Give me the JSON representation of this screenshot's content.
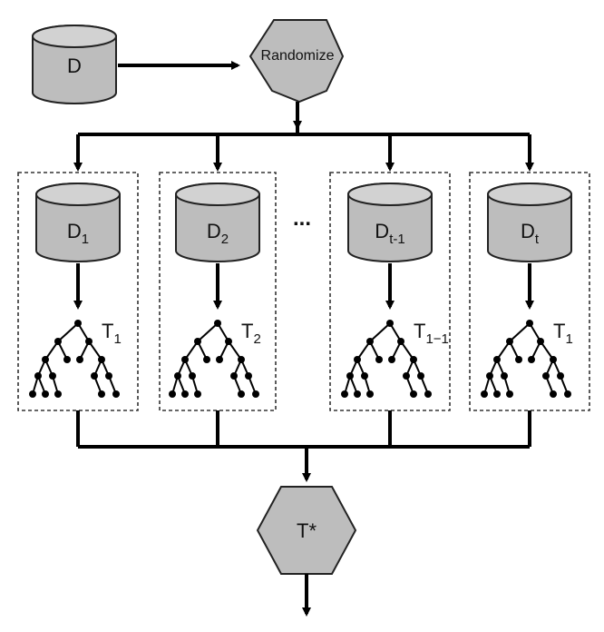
{
  "input_dataset": "D",
  "randomize_step": "Randomize",
  "ellipsis": "...",
  "partitions": [
    {
      "dataset": "D",
      "dataset_sub": "1",
      "tree": "T",
      "tree_sub": "1"
    },
    {
      "dataset": "D",
      "dataset_sub": "2",
      "tree": "T",
      "tree_sub": "2"
    },
    {
      "dataset": "D",
      "dataset_sub": "t-1",
      "tree": "T",
      "tree_sub": "1−1"
    },
    {
      "dataset": "D",
      "dataset_sub": "t",
      "tree": "T",
      "tree_sub": "1"
    }
  ],
  "output": "T*"
}
